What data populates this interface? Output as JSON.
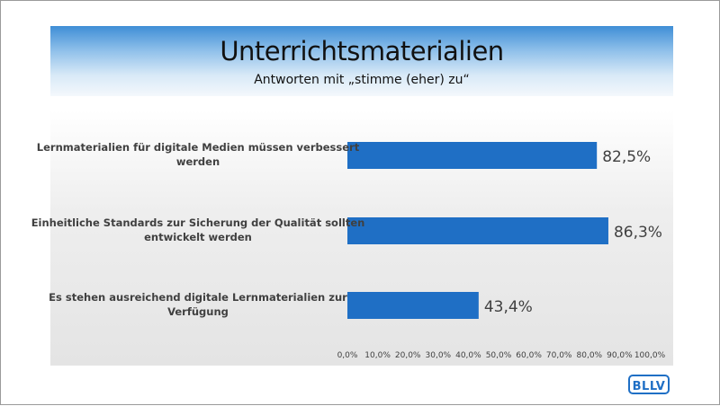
{
  "header": {
    "title": "Unterrichtsmaterialien",
    "subtitle": "Antworten mit „stimme (eher) zu“"
  },
  "logo": {
    "text": "BLLV"
  },
  "colors": {
    "bar": "#1f6fc5",
    "header_top": "#3f8ed6",
    "logo": "#1f6fc5"
  },
  "chart_data": {
    "type": "bar",
    "orientation": "horizontal",
    "categories": [
      [
        "Lernmaterialien für digitale Medien müssen verbessert",
        "werden"
      ],
      [
        "Einheitliche Standards zur Sicherung der Qualität sollten",
        "entwickelt werden"
      ],
      [
        "Es stehen ausreichend digitale Lernmaterialien zur",
        "Verfügung"
      ]
    ],
    "values": [
      82.5,
      86.3,
      43.4
    ],
    "value_labels": [
      "82,5%",
      "86,3%",
      "43,4%"
    ],
    "xlim": [
      0,
      100
    ],
    "ticks": [
      0,
      10,
      20,
      30,
      40,
      50,
      60,
      70,
      80,
      90,
      100
    ],
    "tick_labels": [
      "0,0%",
      "10,0%",
      "20,0%",
      "30,0%",
      "40,0%",
      "50,0%",
      "60,0%",
      "70,0%",
      "80,0%",
      "90,0%",
      "100,0%"
    ],
    "grid": false,
    "legend": "none"
  }
}
